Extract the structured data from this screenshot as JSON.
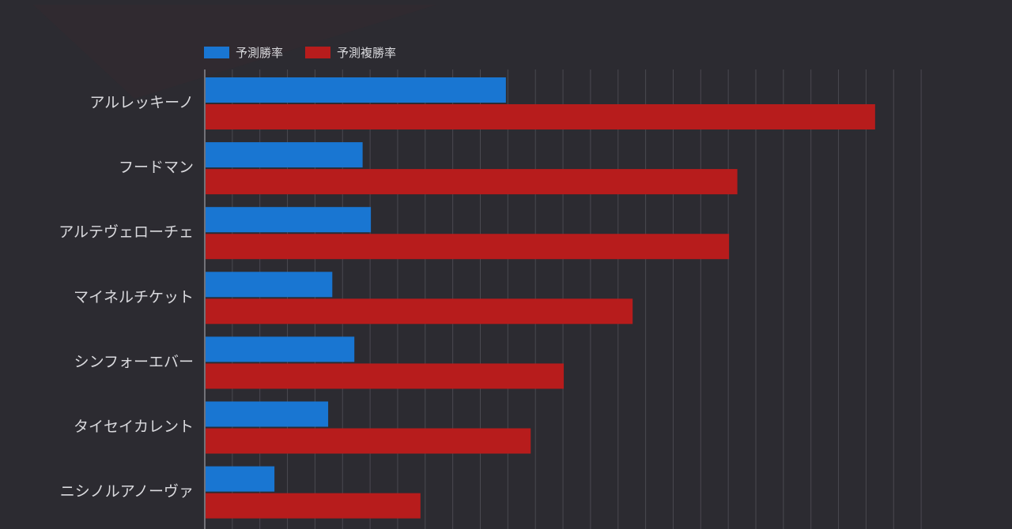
{
  "chart_data": {
    "type": "bar",
    "orientation": "horizontal",
    "categories": [
      "アルレッキーノ",
      "フードマン",
      "アルテヴェローチェ",
      "マイネルチケット",
      "シンフォーエバー",
      "タイセイカレント",
      "ニシノルアノーヴァ"
    ],
    "series": [
      {
        "name": "予測勝率",
        "color": "#1976d2",
        "values": [
          10.9,
          5.7,
          6.0,
          4.6,
          5.4,
          4.45,
          2.5
        ]
      },
      {
        "name": "予測複勝率",
        "color": "#b71c1c",
        "values": [
          24.3,
          19.3,
          19.0,
          15.5,
          13.0,
          11.8,
          7.8
        ]
      }
    ],
    "xlim": [
      0,
      26
    ],
    "grid": true,
    "legend_position": "top-left",
    "title": "",
    "xlabel": "",
    "ylabel": ""
  }
}
